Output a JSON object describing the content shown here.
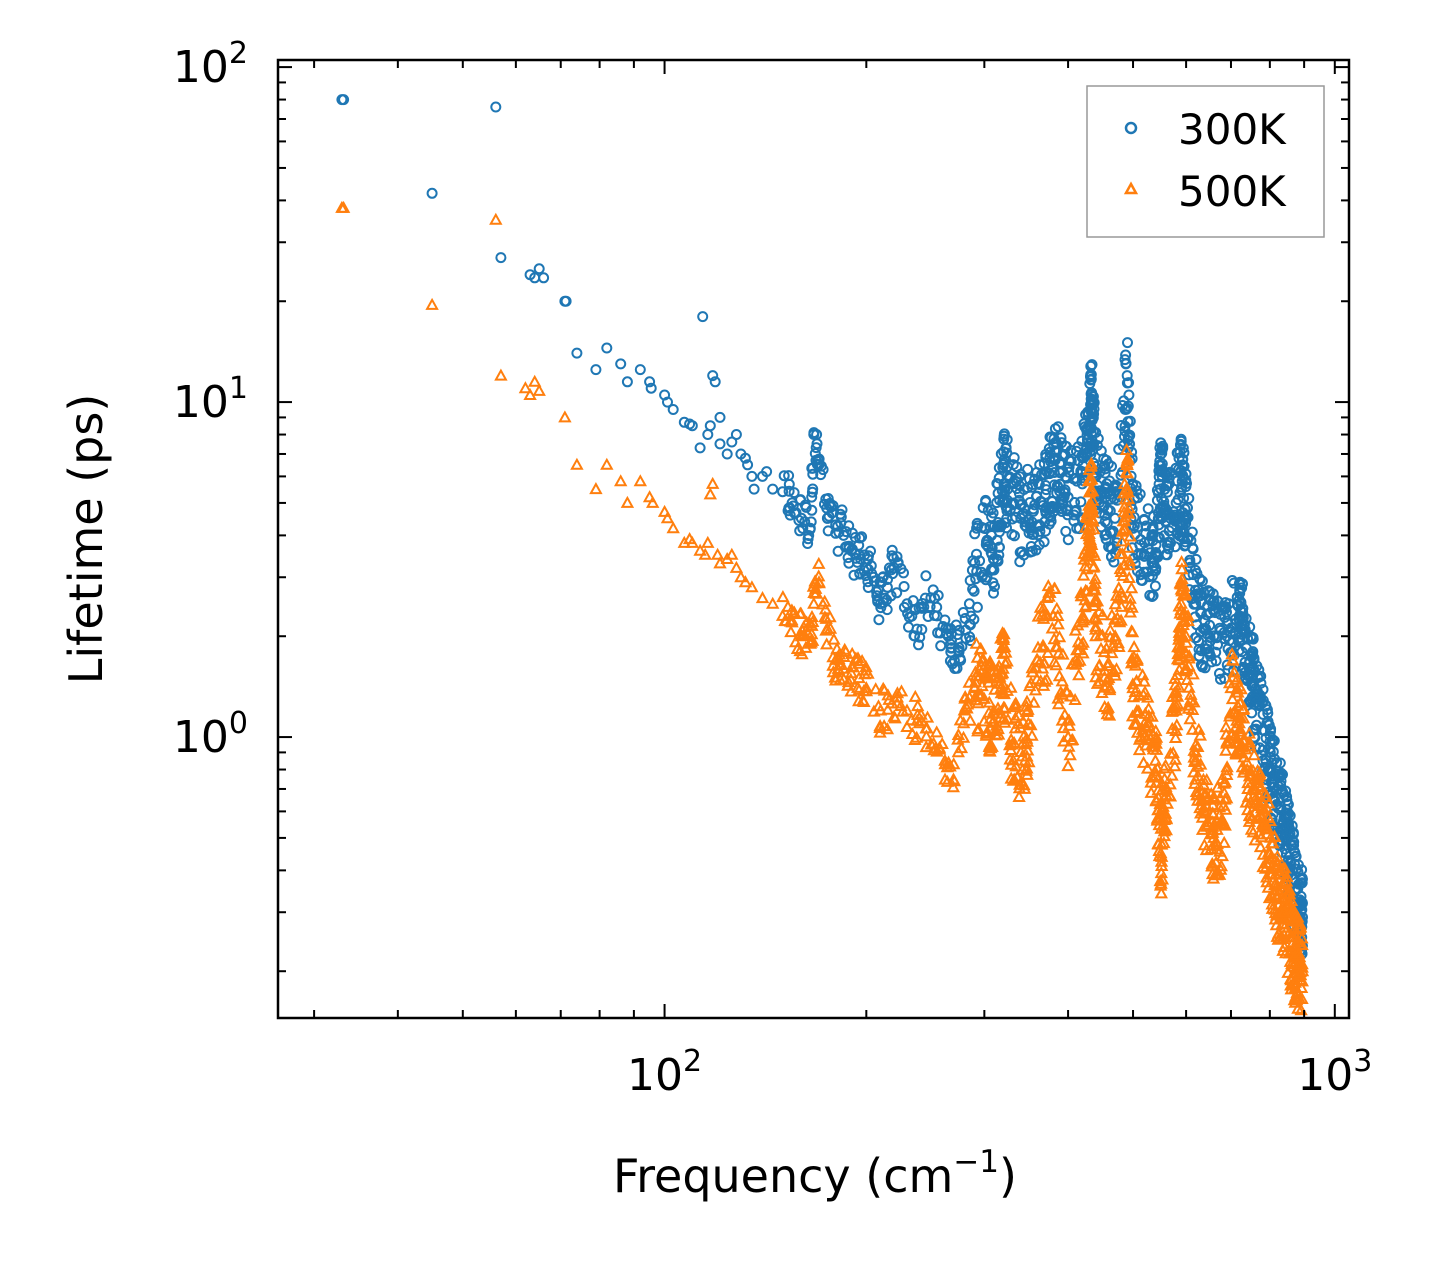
{
  "chart_data": {
    "type": "scatter",
    "xscale": "log",
    "yscale": "log",
    "xlim": [
      26.5,
      1050
    ],
    "ylim": [
      0.145,
      105
    ],
    "xlabel_main": "Frequency (cm",
    "xlabel_sup": "−1",
    "xlabel_end": ")",
    "ylabel": "Lifetime (ps)",
    "x_ticks": [
      {
        "base": "10",
        "exp": "2",
        "value": 100
      },
      {
        "base": "10",
        "exp": "3",
        "value": 1000
      }
    ],
    "y_ticks": [
      {
        "base": "10",
        "exp": "0",
        "value": 1
      },
      {
        "base": "10",
        "exp": "1",
        "value": 10
      },
      {
        "base": "10",
        "exp": "2",
        "value": 100
      }
    ],
    "legend_position": "top-right",
    "series": [
      {
        "name": "300K",
        "color": "#1f77b4",
        "marker": "circle",
        "points": [
          [
            33,
            80
          ],
          [
            33.2,
            80
          ],
          [
            45,
            42
          ],
          [
            56,
            76
          ],
          [
            57,
            27
          ],
          [
            63,
            24
          ],
          [
            64,
            23.5
          ],
          [
            65,
            25
          ],
          [
            66,
            23.5
          ],
          [
            71,
            20
          ],
          [
            71.3,
            20
          ],
          [
            74,
            14
          ],
          [
            79,
            12.5
          ],
          [
            82,
            14.5
          ],
          [
            86,
            13
          ],
          [
            88,
            11.5
          ],
          [
            92,
            12.5
          ],
          [
            95,
            11.5
          ],
          [
            95.5,
            11
          ],
          [
            100,
            10.5
          ],
          [
            101,
            10
          ],
          [
            103,
            9.5
          ],
          [
            107,
            8.7
          ],
          [
            109,
            8.6
          ],
          [
            110,
            8.5
          ],
          [
            113,
            7.3
          ],
          [
            114,
            18
          ],
          [
            116,
            8
          ],
          [
            117,
            8.5
          ],
          [
            118,
            12
          ],
          [
            119,
            11.5
          ],
          [
            121,
            9
          ],
          [
            121,
            7.5
          ],
          [
            124,
            7
          ],
          [
            126,
            7.6
          ],
          [
            128,
            8
          ],
          [
            130,
            7
          ],
          [
            132,
            6.8
          ],
          [
            133,
            6.5
          ],
          [
            135,
            6
          ],
          [
            136,
            5.5
          ],
          [
            140,
            6
          ],
          [
            142,
            6.2
          ],
          [
            145,
            5.5
          ],
          [
            150,
            5.4
          ],
          [
            155,
            5
          ],
          [
            160,
            4.5
          ],
          [
            165,
            4.2
          ],
          [
            167,
            8
          ],
          [
            170,
            6.5
          ],
          [
            175,
            4.5
          ],
          [
            180,
            4.3
          ],
          [
            185,
            4
          ],
          [
            190,
            3.6
          ],
          [
            195,
            3.5
          ],
          [
            200,
            3.2
          ],
          [
            205,
            3
          ],
          [
            210,
            2.5
          ],
          [
            215,
            2.8
          ],
          [
            220,
            3.2
          ],
          [
            230,
            2.5
          ],
          [
            238,
            2.1
          ],
          [
            245,
            2.6
          ],
          [
            255,
            2.3
          ],
          [
            265,
            2.0
          ],
          [
            268,
            1.85
          ],
          [
            275,
            1.85
          ],
          [
            285,
            2.5
          ],
          [
            300,
            4.2
          ],
          [
            310,
            3.4
          ],
          [
            320,
            6.5
          ],
          [
            325,
            5.5
          ],
          [
            340,
            4.5
          ],
          [
            355,
            4.8
          ],
          [
            370,
            5.3
          ],
          [
            380,
            6.4
          ],
          [
            390,
            6.6
          ],
          [
            400,
            5.2
          ],
          [
            420,
            5.7
          ],
          [
            432,
            9.5
          ],
          [
            434,
            10
          ],
          [
            440,
            6
          ],
          [
            455,
            5.2
          ],
          [
            470,
            4.5
          ],
          [
            490,
            12
          ],
          [
            500,
            4.2
          ],
          [
            520,
            3.8
          ],
          [
            540,
            3.5
          ],
          [
            550,
            6.2
          ],
          [
            560,
            4.8
          ],
          [
            580,
            5
          ],
          [
            592,
            5.8
          ],
          [
            600,
            4.6
          ],
          [
            620,
            2.5
          ],
          [
            640,
            2.1
          ],
          [
            660,
            2
          ],
          [
            690,
            2
          ],
          [
            720,
            2.3
          ],
          [
            730,
            2.1
          ],
          [
            750,
            1.6
          ],
          [
            760,
            1.3
          ],
          [
            780,
            1.05
          ],
          [
            800,
            0.8
          ],
          [
            810,
            0.73
          ],
          [
            830,
            0.62
          ],
          [
            845,
            0.5
          ],
          [
            860,
            0.42
          ],
          [
            875,
            0.35
          ],
          [
            890,
            0.3
          ],
          [
            895,
            0.29
          ]
        ]
      },
      {
        "name": "500K",
        "color": "#ff7f0e",
        "marker": "triangle",
        "points": [
          [
            33,
            38
          ],
          [
            33.2,
            38
          ],
          [
            45,
            19.5
          ],
          [
            56,
            35
          ],
          [
            57,
            12
          ],
          [
            62,
            11
          ],
          [
            63,
            10.5
          ],
          [
            64,
            11.5
          ],
          [
            65,
            10.8
          ],
          [
            71,
            9
          ],
          [
            74,
            6.5
          ],
          [
            79,
            5.5
          ],
          [
            82,
            6.5
          ],
          [
            86,
            5.8
          ],
          [
            88,
            5
          ],
          [
            92,
            5.8
          ],
          [
            95,
            5.2
          ],
          [
            96,
            5
          ],
          [
            100,
            4.7
          ],
          [
            101,
            4.5
          ],
          [
            103,
            4.2
          ],
          [
            107,
            3.8
          ],
          [
            109,
            3.9
          ],
          [
            110,
            3.8
          ],
          [
            113,
            3.6
          ],
          [
            115,
            3.5
          ],
          [
            116,
            3.8
          ],
          [
            117,
            5.3
          ],
          [
            118,
            5.7
          ],
          [
            120,
            3.5
          ],
          [
            121,
            3.3
          ],
          [
            124,
            3.4
          ],
          [
            126,
            3.5
          ],
          [
            128,
            3.2
          ],
          [
            130,
            3
          ],
          [
            132,
            2.9
          ],
          [
            135,
            2.8
          ],
          [
            140,
            2.6
          ],
          [
            145,
            2.5
          ],
          [
            150,
            2.3
          ],
          [
            155,
            2.2
          ],
          [
            160,
            2
          ],
          [
            165,
            1.9
          ],
          [
            167,
            2.5
          ],
          [
            170,
            2.9
          ],
          [
            175,
            2.1
          ],
          [
            180,
            1.7
          ],
          [
            185,
            1.6
          ],
          [
            190,
            1.55
          ],
          [
            195,
            1.5
          ],
          [
            200,
            1.4
          ],
          [
            210,
            1.2
          ],
          [
            220,
            1.15
          ],
          [
            230,
            1.2
          ],
          [
            240,
            1.1
          ],
          [
            250,
            0.95
          ],
          [
            262,
            0.85
          ],
          [
            270,
            0.83
          ],
          [
            280,
            1.2
          ],
          [
            290,
            1.4
          ],
          [
            300,
            1.3
          ],
          [
            310,
            1.2
          ],
          [
            320,
            1.6
          ],
          [
            330,
            0.95
          ],
          [
            345,
            0.85
          ],
          [
            360,
            1.7
          ],
          [
            380,
            2.3
          ],
          [
            400,
            1.0
          ],
          [
            420,
            2.2
          ],
          [
            430,
            4.6
          ],
          [
            434,
            4.8
          ],
          [
            440,
            2.0
          ],
          [
            460,
            1.5
          ],
          [
            480,
            2.7
          ],
          [
            490,
            6.5
          ],
          [
            500,
            1.4
          ],
          [
            520,
            1.1
          ],
          [
            540,
            0.85
          ],
          [
            550,
            0.45
          ],
          [
            560,
            0.7
          ],
          [
            580,
            1.2
          ],
          [
            590,
            2.5
          ],
          [
            600,
            2.0
          ],
          [
            620,
            0.9
          ],
          [
            640,
            0.6
          ],
          [
            660,
            0.5
          ],
          [
            680,
            0.55
          ],
          [
            700,
            1.4
          ],
          [
            720,
            1.1
          ],
          [
            740,
            0.8
          ],
          [
            760,
            0.65
          ],
          [
            780,
            0.55
          ],
          [
            800,
            0.45
          ],
          [
            820,
            0.35
          ],
          [
            840,
            0.3
          ],
          [
            855,
            0.26
          ],
          [
            870,
            0.22
          ],
          [
            880,
            0.21
          ],
          [
            895,
            0.2
          ]
        ]
      }
    ]
  }
}
